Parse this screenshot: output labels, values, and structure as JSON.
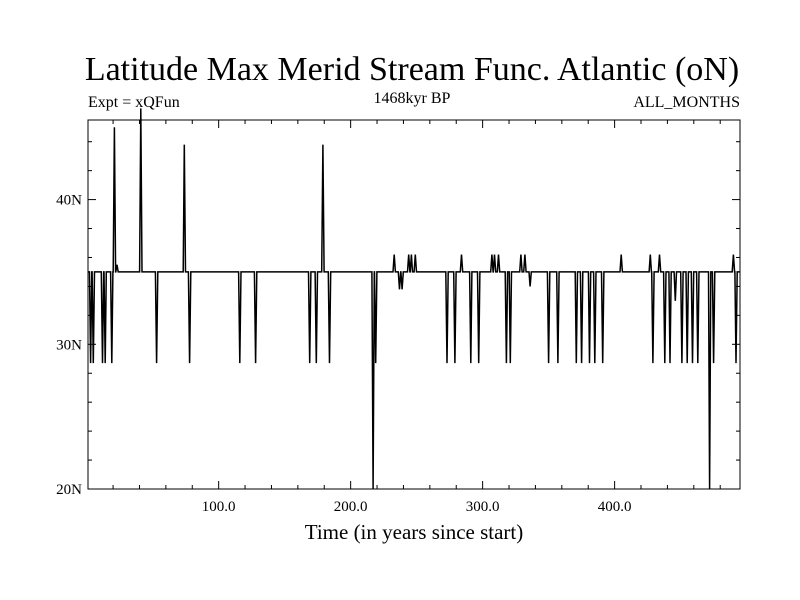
{
  "chart_data": {
    "type": "line",
    "title": "Latitude Max Merid Stream Func. Atlantic (oN)",
    "left_string": "Expt = xQFun",
    "center_string": "1468kyr BP",
    "right_string": "ALL_MONTHS",
    "xlabel": "Time (in years since start)",
    "ylabel": "",
    "xlim": [
      1,
      495
    ],
    "ylim": [
      20,
      45.5
    ],
    "xticks": [
      {
        "value": 100,
        "label": "100.0"
      },
      {
        "value": 200,
        "label": "200.0"
      },
      {
        "value": 300,
        "label": "300.0"
      },
      {
        "value": 400,
        "label": "400.0"
      }
    ],
    "yticks": [
      {
        "value": 20,
        "label": "20N"
      },
      {
        "value": 30,
        "label": "30N"
      },
      {
        "value": 40,
        "label": "40N"
      }
    ],
    "series": [
      {
        "color": "#000000",
        "baseline": 35,
        "events": [
          [
            3,
            28.7
          ],
          [
            5,
            28.7
          ],
          [
            12,
            28.7
          ],
          [
            14,
            28.7
          ],
          [
            19,
            28.7
          ],
          [
            21,
            45
          ],
          [
            23,
            35.5
          ],
          [
            41,
            46.3
          ],
          [
            53,
            28.7
          ],
          [
            74,
            43.8
          ],
          [
            78,
            28.7
          ],
          [
            116,
            28.7
          ],
          [
            128,
            28.7
          ],
          [
            169,
            28.7
          ],
          [
            174,
            28.7
          ],
          [
            179,
            43.8
          ],
          [
            184,
            28.7
          ],
          [
            217,
            20
          ],
          [
            219,
            28.7
          ],
          [
            233,
            36.2
          ],
          [
            237,
            33.8
          ],
          [
            239,
            33.8
          ],
          [
            244,
            36.2
          ],
          [
            246,
            36.2
          ],
          [
            249,
            36.2
          ],
          [
            273,
            28.7
          ],
          [
            279,
            28.7
          ],
          [
            284,
            36.2
          ],
          [
            291,
            28.7
          ],
          [
            297,
            28.7
          ],
          [
            307,
            36.2
          ],
          [
            309,
            36.2
          ],
          [
            312,
            36.2
          ],
          [
            318,
            28.7
          ],
          [
            321,
            28.7
          ],
          [
            329,
            36.2
          ],
          [
            332,
            36.2
          ],
          [
            336,
            34
          ],
          [
            350,
            28.7
          ],
          [
            357,
            28.7
          ],
          [
            371,
            28.7
          ],
          [
            375,
            28.7
          ],
          [
            381,
            28.7
          ],
          [
            385,
            28.7
          ],
          [
            391,
            28.7
          ],
          [
            405,
            36.2
          ],
          [
            427,
            36.2
          ],
          [
            429,
            28.7
          ],
          [
            434,
            36.2
          ],
          [
            438,
            28.7
          ],
          [
            442,
            28.7
          ],
          [
            446,
            33
          ],
          [
            451,
            28.7
          ],
          [
            455,
            28.7
          ],
          [
            459,
            28.7
          ],
          [
            463,
            28.7
          ],
          [
            472,
            20
          ],
          [
            475,
            28.7
          ],
          [
            490,
            36.2
          ],
          [
            492,
            28.7
          ]
        ]
      }
    ]
  }
}
